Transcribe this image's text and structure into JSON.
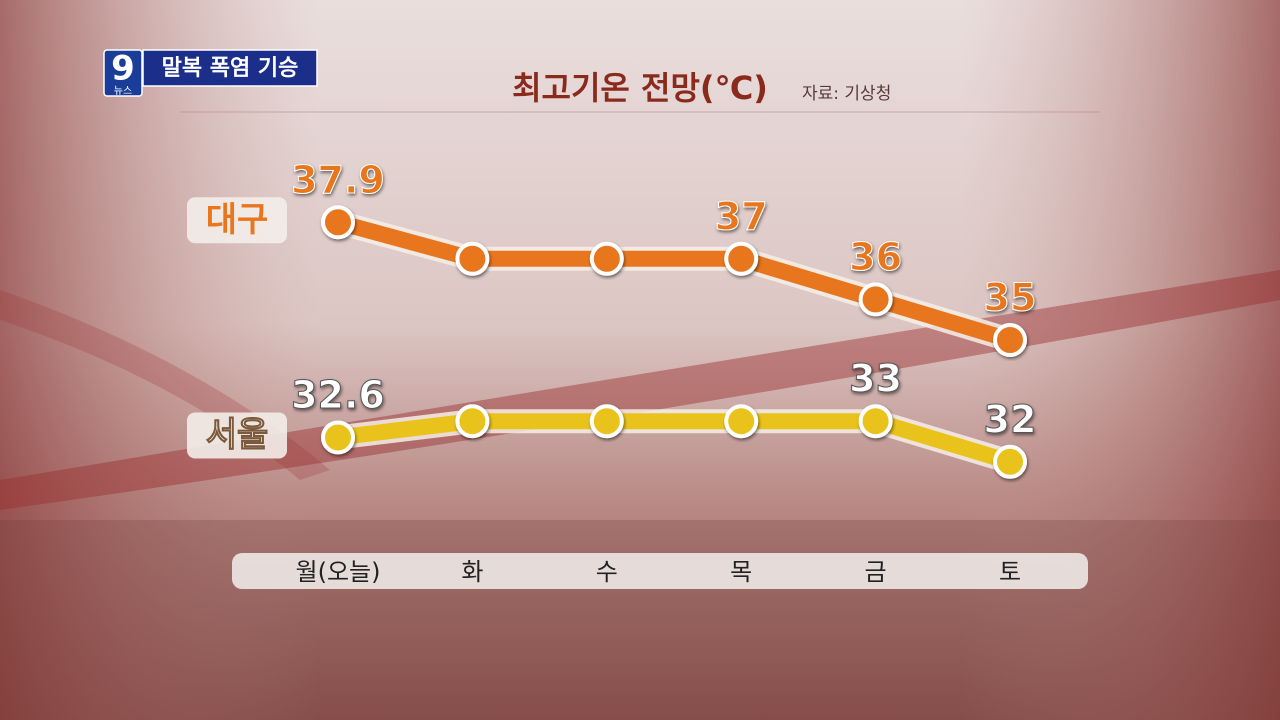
{
  "header": {
    "logo": "9",
    "logo_sub": "뉴스",
    "headline": "말복 폭염 기승"
  },
  "chart_data": {
    "type": "line",
    "title": "최고기온 전망(℃)",
    "source": "자료: 기상청",
    "categories": [
      "월(오늘)",
      "화",
      "수",
      "목",
      "금",
      "토"
    ],
    "ylim": [
      30,
      40
    ],
    "series": [
      {
        "name": "대구",
        "color": "#e8761e",
        "values": [
          37.9,
          37,
          37,
          37,
          36,
          35
        ],
        "value_labels": [
          "37.9",
          null,
          null,
          "37",
          "36",
          "35"
        ]
      },
      {
        "name": "서울",
        "color": "#e9c31c",
        "values": [
          32.6,
          33,
          33,
          33,
          33,
          32
        ],
        "value_labels": [
          "32.6",
          null,
          null,
          null,
          "33",
          "32"
        ]
      }
    ]
  }
}
